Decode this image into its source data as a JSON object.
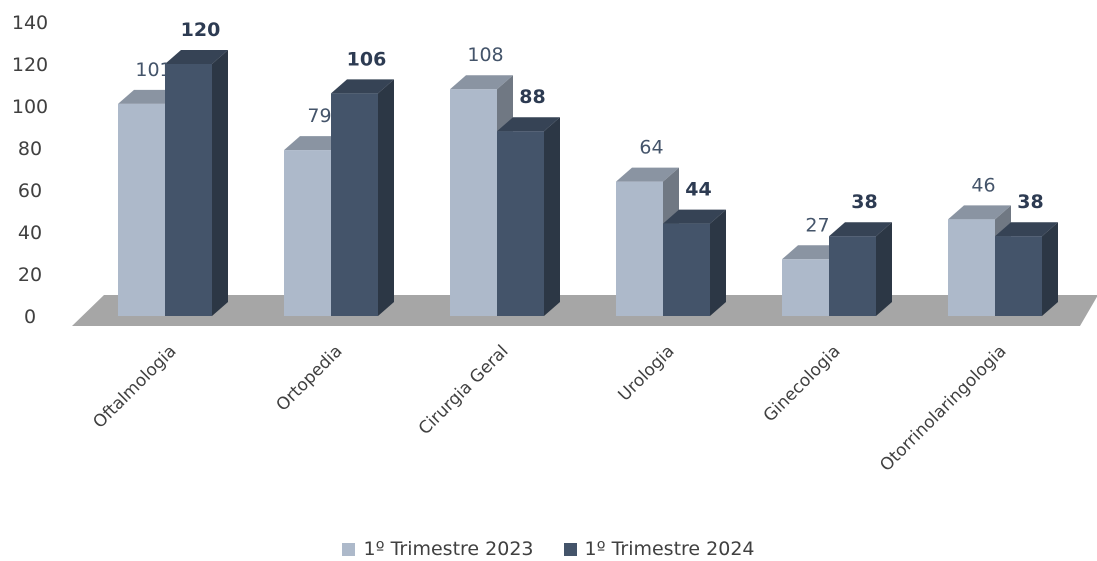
{
  "chart_data": {
    "type": "bar",
    "categories": [
      "Oftalmologia",
      "Ortopedia",
      "Cirurgia Geral",
      "Urologia",
      "Ginecologia",
      "Otorrinolaringologia"
    ],
    "series": [
      {
        "name": "1º Trimestre 2023",
        "values": [
          101,
          79,
          108,
          64,
          27,
          46
        ],
        "color": "#adb9ca"
      },
      {
        "name": "1º Trimestre 2024",
        "values": [
          120,
          106,
          88,
          44,
          38,
          38
        ],
        "color": "#44546a"
      }
    ],
    "yticks": [
      0,
      20,
      40,
      60,
      80,
      100,
      120,
      140
    ],
    "ylim": [
      0,
      140
    ],
    "style": "3d-clustered-column",
    "floor_color": "#a6a6a6",
    "grid": false,
    "legend_position": "bottom"
  }
}
